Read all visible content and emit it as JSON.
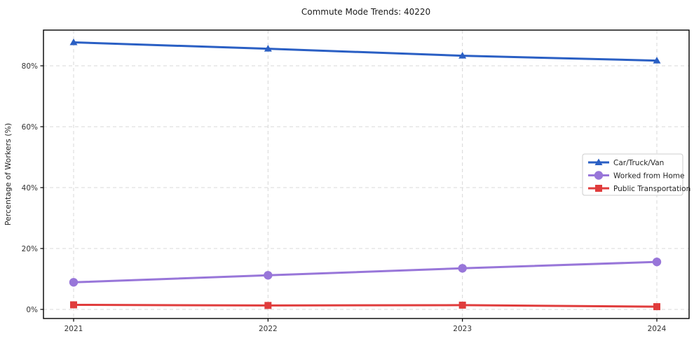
{
  "page": {
    "title": "Commute Mode Trends: 40220"
  },
  "chart_data": {
    "type": "line",
    "title": "Commute Mode Trends: 40220",
    "xlabel": "",
    "ylabel": "Percentage of Workers (%)",
    "x": [
      2021,
      2022,
      2023,
      2024
    ],
    "x_tick_labels": [
      "2021",
      "2022",
      "2023",
      "2024"
    ],
    "y_ticks": [
      0,
      20,
      40,
      60,
      80
    ],
    "y_tick_labels": [
      "0%",
      "20%",
      "40%",
      "60%",
      "80%"
    ],
    "ylim": [
      -3,
      92
    ],
    "grid": true,
    "grid_style": "dashed",
    "legend_position": "center-right",
    "series": [
      {
        "name": "Car/Truck/Van",
        "marker": "triangle",
        "color": "#2a5fc4",
        "values": [
          87.7,
          85.6,
          83.3,
          81.7
        ]
      },
      {
        "name": "Worked from Home",
        "marker": "circle",
        "color": "#9876d9",
        "values": [
          8.9,
          11.2,
          13.5,
          15.6
        ]
      },
      {
        "name": "Public Transportation",
        "marker": "square",
        "color": "#e03c3c",
        "values": [
          1.5,
          1.3,
          1.4,
          0.9
        ]
      }
    ],
    "colors": {
      "gridline": "#d8d8d8",
      "spine": "#000000",
      "legend_border": "#cccccc",
      "legend_background": "#ffffff"
    }
  }
}
